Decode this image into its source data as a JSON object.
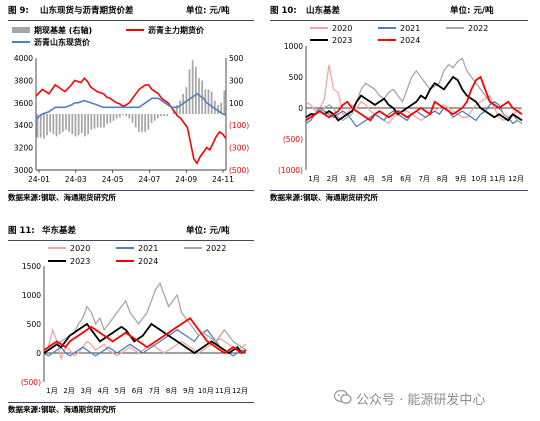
{
  "figures": [
    {
      "fig_no": "图 9:",
      "title": "山东现货与沥青期货价差",
      "unit": "单位: 元/吨",
      "source": "数据来源:钢联、海通期货研究所"
    },
    {
      "fig_no": "图 10:",
      "title": "山东基差",
      "unit": "单位: 元/吨",
      "source": "数据来源:钢联、海通期货研究所"
    },
    {
      "fig_no": "图 11:",
      "title": "华东基差",
      "unit": "单位: 元/吨",
      "source": "数据来源:钢联、海通期货研究所"
    }
  ],
  "watermark": {
    "text": "公众号 · 能源研发中心",
    "icon": "wechat-icon"
  },
  "colors": {
    "red": "#ff0000",
    "blue": "#4f81bd",
    "gray": "#a6a6a6",
    "pink": "#f4a6a6",
    "black": "#000000"
  },
  "chart_data": [
    {
      "type": "line",
      "legend": [
        "期现基差 (右轴)",
        "沥青主力期货价",
        "沥青山东现货价"
      ],
      "x_ticks": [
        "24-01",
        "24-03",
        "24-05",
        "24-07",
        "24-09",
        "24-11"
      ],
      "left_axis": {
        "ylim": [
          3000,
          4000
        ],
        "ticks": [
          "3000",
          "3200",
          "3400",
          "3600",
          "3800",
          "4000"
        ]
      },
      "right_axis": {
        "ylim": [
          -500,
          500
        ],
        "ticks": [
          "(500)",
          "(300)",
          "(100)",
          "100",
          "300",
          "500"
        ]
      },
      "series": [
        {
          "name": "沥青主力期货价",
          "axis": "left",
          "color": "#ff0000",
          "values": [
            3660,
            3690,
            3720,
            3700,
            3680,
            3720,
            3760,
            3740,
            3720,
            3700,
            3730,
            3760,
            3800,
            3790,
            3780,
            3820,
            3790,
            3740,
            3720,
            3700,
            3690,
            3680,
            3650,
            3640,
            3620,
            3600,
            3590,
            3570,
            3580,
            3600,
            3640,
            3680,
            3720,
            3740,
            3760,
            3760,
            3720,
            3700,
            3680,
            3640,
            3620,
            3600,
            3560,
            3520,
            3480,
            3460,
            3420,
            3380,
            3240,
            3100,
            3060,
            3120,
            3160,
            3200,
            3180,
            3240,
            3300,
            3340,
            3320,
            3280
          ]
        },
        {
          "name": "沥青山东现货价",
          "axis": "left",
          "color": "#4f81bd",
          "values": [
            3450,
            3480,
            3500,
            3510,
            3520,
            3540,
            3560,
            3560,
            3560,
            3560,
            3570,
            3580,
            3600,
            3600,
            3610,
            3620,
            3610,
            3600,
            3590,
            3580,
            3570,
            3560,
            3560,
            3560,
            3560,
            3560,
            3560,
            3560,
            3560,
            3560,
            3560,
            3560,
            3560,
            3580,
            3600,
            3620,
            3640,
            3640,
            3640,
            3620,
            3600,
            3580,
            3560,
            3560,
            3560,
            3580,
            3600,
            3620,
            3640,
            3660,
            3680,
            3660,
            3640,
            3600,
            3580,
            3560,
            3540,
            3520,
            3500,
            3490
          ]
        },
        {
          "name": "期现基差 (右轴)",
          "axis": "right",
          "type": "bar",
          "color": "#a6a6a6",
          "values": [
            -210,
            -210,
            -220,
            -190,
            -160,
            -180,
            -200,
            -180,
            -160,
            -140,
            -160,
            -180,
            -200,
            -190,
            -170,
            -200,
            -180,
            -140,
            -130,
            -120,
            -120,
            -120,
            -90,
            -80,
            -60,
            -40,
            -30,
            -10,
            -20,
            -40,
            -80,
            -120,
            -160,
            -160,
            -160,
            -140,
            -80,
            -60,
            -40,
            -20,
            -20,
            -20,
            0,
            40,
            80,
            120,
            180,
            240,
            400,
            480,
            420,
            320,
            300,
            220,
            220,
            200,
            120,
            80,
            100,
            210
          ]
        }
      ]
    },
    {
      "type": "line",
      "x_ticks": [
        "1月",
        "2月",
        "3月",
        "4月",
        "5月",
        "6月",
        "7月",
        "8月",
        "9月",
        "10月",
        "11月",
        "12月"
      ],
      "ylim": [
        -1000,
        1000
      ],
      "y_ticks": [
        "(1000)",
        "(500)",
        "0",
        "500",
        "1000"
      ],
      "legend": [
        "2020",
        "2021",
        "2022",
        "2023",
        "2024"
      ],
      "series": [
        {
          "name": "2020",
          "color": "#f4a6a6",
          "values": [
            100,
            50,
            -50,
            0,
            150,
            700,
            300,
            250,
            -100,
            -100,
            50,
            0,
            100,
            50,
            -50,
            -100,
            -150,
            -200,
            -250,
            -150,
            -100,
            -50,
            -50,
            -100,
            -150,
            -200,
            -150,
            -100,
            -50,
            0,
            50,
            0,
            -50,
            -100,
            -150,
            -150,
            -50,
            50,
            100,
            150,
            200,
            0,
            -150,
            -200,
            -150,
            -100,
            -50,
            0
          ]
        },
        {
          "name": "2021",
          "color": "#4f81bd",
          "values": [
            -250,
            -200,
            -100,
            0,
            -50,
            -100,
            -150,
            -100,
            -50,
            -100,
            -200,
            -300,
            -250,
            -200,
            -150,
            -100,
            -150,
            -200,
            -100,
            -50,
            -100,
            -150,
            -200,
            -100,
            -50,
            -100,
            -150,
            -100,
            -50,
            -100,
            0,
            -50,
            -150,
            -100,
            -50,
            -100,
            -150,
            -200,
            -100,
            -50,
            50,
            100,
            50,
            -100,
            -150,
            -250,
            -200,
            -250
          ]
        },
        {
          "name": "2022",
          "color": "#a6a6a6",
          "values": [
            -200,
            -150,
            -100,
            -50,
            0,
            50,
            0,
            -150,
            -200,
            -150,
            -100,
            100,
            300,
            400,
            350,
            300,
            200,
            150,
            250,
            300,
            200,
            100,
            300,
            500,
            600,
            500,
            400,
            300,
            350,
            400,
            600,
            700,
            650,
            750,
            800,
            600,
            500,
            400,
            300,
            200,
            100,
            50,
            0,
            -100,
            -150,
            -100,
            -200,
            -250
          ]
        },
        {
          "name": "2023",
          "color": "#000000",
          "values": [
            -150,
            -100,
            -100,
            -50,
            -100,
            -50,
            -100,
            -200,
            -150,
            -100,
            -50,
            100,
            200,
            150,
            100,
            50,
            100,
            150,
            50,
            0,
            -100,
            -50,
            0,
            50,
            100,
            200,
            150,
            300,
            400,
            350,
            300,
            400,
            500,
            450,
            300,
            200,
            150,
            100,
            0,
            -50,
            -100,
            -150,
            -100,
            -150,
            -200,
            -100,
            -150,
            -200
          ]
        },
        {
          "name": "2024",
          "color": "#ff0000",
          "values": [
            -200,
            -150,
            -100,
            -50,
            -100,
            -150,
            -100,
            -50,
            50,
            100,
            0,
            -50,
            -100,
            -150,
            -200,
            -100,
            -50,
            -100,
            -150,
            -100,
            -50,
            -100,
            -150,
            -100,
            -50,
            0,
            -50,
            -100,
            100,
            50,
            0,
            -50,
            -100,
            -50,
            0,
            100,
            300,
            450,
            500,
            300,
            100,
            50,
            0,
            50,
            100,
            0,
            -50,
            -100
          ]
        }
      ]
    },
    {
      "type": "line",
      "x_ticks": [
        "1月",
        "2月",
        "3月",
        "4月",
        "5月",
        "6月",
        "7月",
        "8月",
        "9月",
        "10月",
        "11月",
        "12月"
      ],
      "ylim": [
        -500,
        1500
      ],
      "y_ticks": [
        "(500)",
        "0",
        "500",
        "1000",
        "1500"
      ],
      "legend": [
        "2020",
        "2021",
        "2022",
        "2023",
        "2024"
      ],
      "series": [
        {
          "name": "2020",
          "color": "#f4a6a6",
          "values": [
            50,
            100,
            400,
            200,
            -100,
            100,
            50,
            -50,
            0,
            100,
            200,
            150,
            50,
            100,
            150,
            50,
            0,
            -50,
            0,
            50,
            100,
            50,
            0,
            50,
            100,
            150,
            100,
            50,
            0,
            50,
            100,
            150,
            200,
            150,
            100,
            50,
            0,
            50,
            100,
            150,
            200,
            250,
            200,
            150,
            100,
            50,
            100,
            150
          ]
        },
        {
          "name": "2021",
          "color": "#4f81bd",
          "values": [
            0,
            -50,
            0,
            50,
            100,
            0,
            -50,
            0,
            50,
            100,
            50,
            0,
            -50,
            0,
            50,
            100,
            50,
            0,
            50,
            100,
            150,
            100,
            50,
            0,
            50,
            100,
            150,
            200,
            250,
            300,
            350,
            400,
            350,
            300,
            250,
            200,
            300,
            350,
            400,
            300,
            200,
            100,
            50,
            0,
            -50,
            0,
            50,
            0
          ]
        },
        {
          "name": "2022",
          "color": "#a6a6a6",
          "values": [
            0,
            50,
            100,
            150,
            200,
            250,
            300,
            350,
            500,
            600,
            800,
            700,
            500,
            600,
            400,
            500,
            600,
            700,
            800,
            900,
            700,
            600,
            500,
            600,
            700,
            900,
            1100,
            1200,
            1000,
            800,
            900,
            1000,
            700,
            600,
            500,
            400,
            300,
            350,
            300,
            250,
            200,
            300,
            400,
            300,
            200,
            150,
            100,
            50
          ]
        },
        {
          "name": "2023",
          "color": "#000000",
          "values": [
            0,
            50,
            100,
            150,
            100,
            200,
            300,
            350,
            400,
            450,
            500,
            400,
            300,
            200,
            250,
            300,
            350,
            400,
            450,
            400,
            300,
            200,
            250,
            300,
            400,
            500,
            450,
            400,
            350,
            300,
            250,
            200,
            150,
            100,
            50,
            0,
            50,
            100,
            150,
            200,
            150,
            100,
            50,
            0,
            50,
            100,
            0,
            50
          ]
        },
        {
          "name": "2024",
          "color": "#ff0000",
          "values": [
            50,
            100,
            150,
            200,
            150,
            100,
            200,
            250,
            300,
            350,
            400,
            450,
            400,
            350,
            300,
            250,
            200,
            250,
            300,
            350,
            300,
            250,
            200,
            150,
            100,
            150,
            200,
            250,
            300,
            350,
            400,
            450,
            500,
            550,
            600,
            500,
            400,
            300,
            200,
            150,
            100,
            50,
            0,
            50,
            100,
            50,
            0,
            50
          ]
        }
      ]
    }
  ]
}
